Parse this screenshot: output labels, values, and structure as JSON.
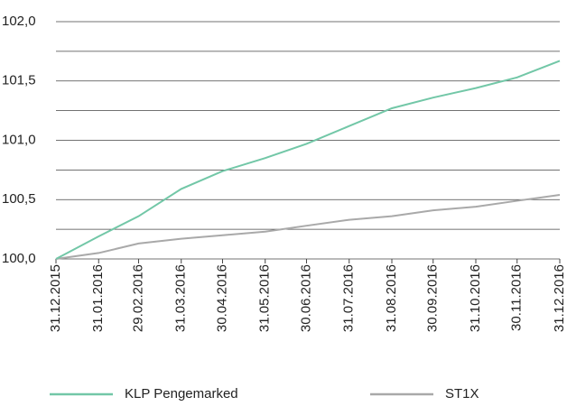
{
  "chart_data": {
    "type": "line",
    "x": [
      "2015-12-31",
      "2016-01-31",
      "2016-02-29",
      "2016-03-31",
      "2016-04-30",
      "2016-05-31",
      "2016-06-30",
      "2016-07-31",
      "2016-08-31",
      "2016-09-30",
      "2016-10-31",
      "2016-11-30",
      "2016-12-31"
    ],
    "series": [
      {
        "name": "KLP Pengemarked",
        "color": "#72c7a7",
        "values": [
          100.0,
          100.19,
          100.36,
          100.59,
          100.74,
          100.85,
          100.97,
          101.12,
          101.27,
          101.36,
          101.44,
          101.53,
          101.67
        ]
      },
      {
        "name": "ST1X",
        "color": "#a9a9a9",
        "values": [
          100.0,
          100.05,
          100.13,
          100.17,
          100.2,
          100.23,
          100.28,
          100.33,
          100.36,
          100.41,
          100.44,
          100.49,
          100.54
        ]
      }
    ],
    "xlim": [
      "2015-12-31",
      "2016-12-31"
    ],
    "xticks": [
      {
        "value": "2015-12-31",
        "label": "31.12.2015"
      },
      {
        "value": "2016-01-31",
        "label": "31.01.2016"
      },
      {
        "value": "2016-02-29",
        "label": "29.02.2016"
      },
      {
        "value": "2016-03-31",
        "label": "31.03.2016"
      },
      {
        "value": "2016-04-30",
        "label": "30.04.2016"
      },
      {
        "value": "2016-05-31",
        "label": "31.05.2016"
      },
      {
        "value": "2016-06-30",
        "label": "30.06.2016"
      },
      {
        "value": "2016-07-31",
        "label": "31.07.2016"
      },
      {
        "value": "2016-08-31",
        "label": "31.08.2016"
      },
      {
        "value": "2016-09-30",
        "label": "30.09.2016"
      },
      {
        "value": "2016-10-31",
        "label": "31.10.2016"
      },
      {
        "value": "2016-11-30",
        "label": "30.11.2016"
      },
      {
        "value": "2016-12-31",
        "label": "31.12.2016"
      }
    ],
    "ylim": [
      100,
      102
    ],
    "yticks": [
      {
        "value": 100,
        "label": "100,0"
      },
      {
        "value": 100.5,
        "label": "100,5"
      },
      {
        "value": 101,
        "label": "101,0"
      },
      {
        "value": 101.5,
        "label": "101,5"
      },
      {
        "value": 102,
        "label": "102,0"
      }
    ],
    "minor_yticks": [
      100.25,
      100.75,
      101.25,
      101.75
    ],
    "grid": true,
    "legend": "bottom"
  }
}
